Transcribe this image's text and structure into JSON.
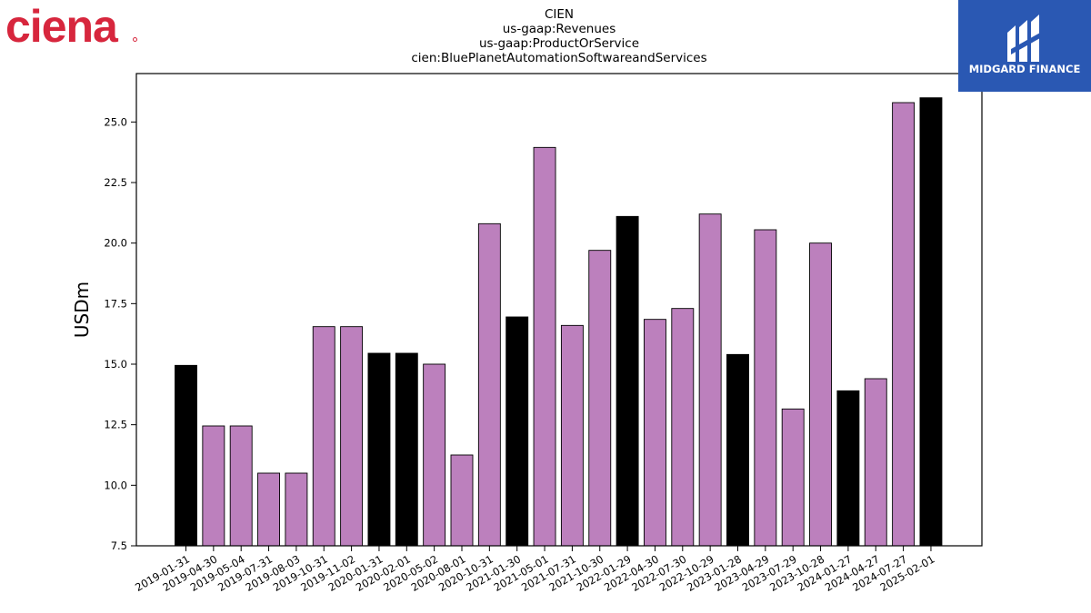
{
  "logos": {
    "left": "ciena",
    "right": "MIDGARD FINANCE"
  },
  "colors": {
    "bar_primary": "#000000",
    "bar_secondary": "#bc80bd",
    "bar_edge": "#000000",
    "brand_red": "#d7263d",
    "brand_blue": "#2a58b3"
  },
  "chart_data": {
    "type": "bar",
    "title_lines": [
      "CIEN",
      "us-gaap:Revenues",
      "us-gaap:ProductOrService",
      "cien:BluePlanetAutomationSoftwareandServices"
    ],
    "xlabel": "",
    "ylabel": "USDm",
    "ylim": [
      7.5,
      27.0
    ],
    "yticks": [
      "7.5",
      "10.0",
      "12.5",
      "15.0",
      "17.5",
      "20.0",
      "22.5",
      "25.0"
    ],
    "grid": false,
    "categories": [
      "2019-01-31",
      "2019-04-30",
      "2019-05-04",
      "2019-07-31",
      "2019-08-03",
      "2019-10-31",
      "2019-11-02",
      "2020-01-31",
      "2020-02-01",
      "2020-05-02",
      "2020-08-01",
      "2020-10-31",
      "2021-01-30",
      "2021-05-01",
      "2021-07-31",
      "2021-10-30",
      "2022-01-29",
      "2022-04-30",
      "2022-07-30",
      "2022-10-29",
      "2023-01-28",
      "2023-04-29",
      "2023-07-29",
      "2023-10-28",
      "2024-01-27",
      "2024-04-27",
      "2024-07-27",
      "2025-02-01"
    ],
    "values": [
      14.95,
      12.45,
      12.45,
      10.5,
      10.5,
      16.55,
      16.55,
      15.45,
      15.45,
      15.0,
      11.25,
      20.8,
      16.95,
      23.95,
      16.6,
      19.7,
      21.1,
      16.85,
      17.3,
      21.2,
      15.4,
      20.55,
      13.15,
      20.0,
      13.9,
      14.4,
      25.8,
      26.0
    ],
    "highlight": [
      true,
      false,
      false,
      false,
      false,
      false,
      false,
      true,
      true,
      false,
      false,
      false,
      true,
      false,
      false,
      false,
      true,
      false,
      false,
      false,
      true,
      false,
      false,
      false,
      true,
      false,
      false,
      true
    ]
  }
}
